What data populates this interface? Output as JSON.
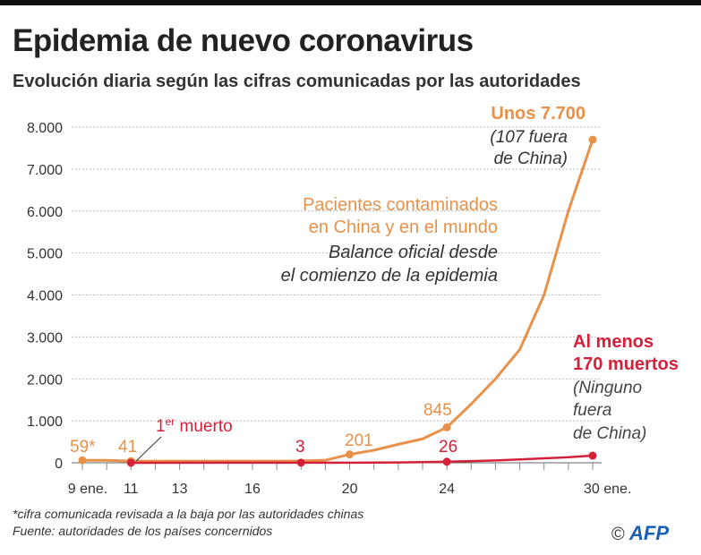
{
  "title": "Epidemia de nuevo coronavirus",
  "subtitle": "Evolución diaria según las cifras comunicadas por las autoridades",
  "footnote": "*cifra comunicada revisada a la baja por las autoridades chinas",
  "source": "Fuente: autoridades de los países concernidos",
  "logo": "AFP",
  "copyright": "©",
  "colors": {
    "contaminados": "#e8914a",
    "muertos": "#d3213a",
    "grid": "#bbbbbb"
  },
  "chart_data": {
    "type": "line",
    "xlabel": "",
    "ylabel": "",
    "x": [
      9,
      10,
      11,
      12,
      13,
      14,
      15,
      16,
      17,
      18,
      19,
      20,
      21,
      22,
      23,
      24,
      25,
      26,
      27,
      28,
      29,
      30
    ],
    "x_ticks": [
      {
        "day": 9,
        "label": "9 ene."
      },
      {
        "day": 11,
        "label": "11"
      },
      {
        "day": 13,
        "label": "13"
      },
      {
        "day": 16,
        "label": "16"
      },
      {
        "day": 20,
        "label": "20"
      },
      {
        "day": 24,
        "label": "24"
      },
      {
        "day": 30,
        "label": "30 ene."
      }
    ],
    "y_ticks": [
      "0",
      "1.000",
      "2.000",
      "3.000",
      "4.000",
      "5.000",
      "6.000",
      "7.000",
      "8.000"
    ],
    "ylim": [
      0,
      8000
    ],
    "xlim": [
      9,
      30
    ],
    "grid": true,
    "series": [
      {
        "key": "contaminados",
        "values": [
          59,
          59,
          41,
          41,
          41,
          41,
          41,
          41,
          41,
          45,
          62,
          201,
          300,
          440,
          571,
          845,
          1400,
          2000,
          2700,
          4000,
          6000,
          7700
        ],
        "marker_days": [
          9,
          11,
          20,
          24,
          30
        ]
      },
      {
        "key": "muertos",
        "x": [
          11,
          18,
          19,
          20,
          21,
          22,
          23,
          24,
          25,
          26,
          27,
          28,
          29,
          30
        ],
        "values": [
          1,
          3,
          3,
          3,
          6,
          9,
          17,
          26,
          41,
          56,
          80,
          106,
          132,
          170
        ],
        "marker_days": [
          11,
          18,
          24,
          30
        ]
      }
    ],
    "data_labels": {
      "c9": "59*",
      "c11": "41",
      "c20": "201",
      "c24": "845",
      "m18": "3",
      "m24": "26",
      "first_death_pre": "1",
      "first_death_sup": "er",
      "first_death_post": " muerto"
    },
    "annotations": {
      "series_label_1": "Pacientes contaminados",
      "series_label_2": "en China y en el mundo",
      "balance_1": "Balance oficial desde",
      "balance_2": "el comienzo de la epidemia",
      "end_c_1": "Unos 7.700",
      "end_c_2": "(107 fuera",
      "end_c_3": "de China)",
      "end_m_1": "Al menos",
      "end_m_2": "170 muertos",
      "end_m_3": "(Ninguno",
      "end_m_4": "fuera",
      "end_m_5": "de China)"
    }
  }
}
